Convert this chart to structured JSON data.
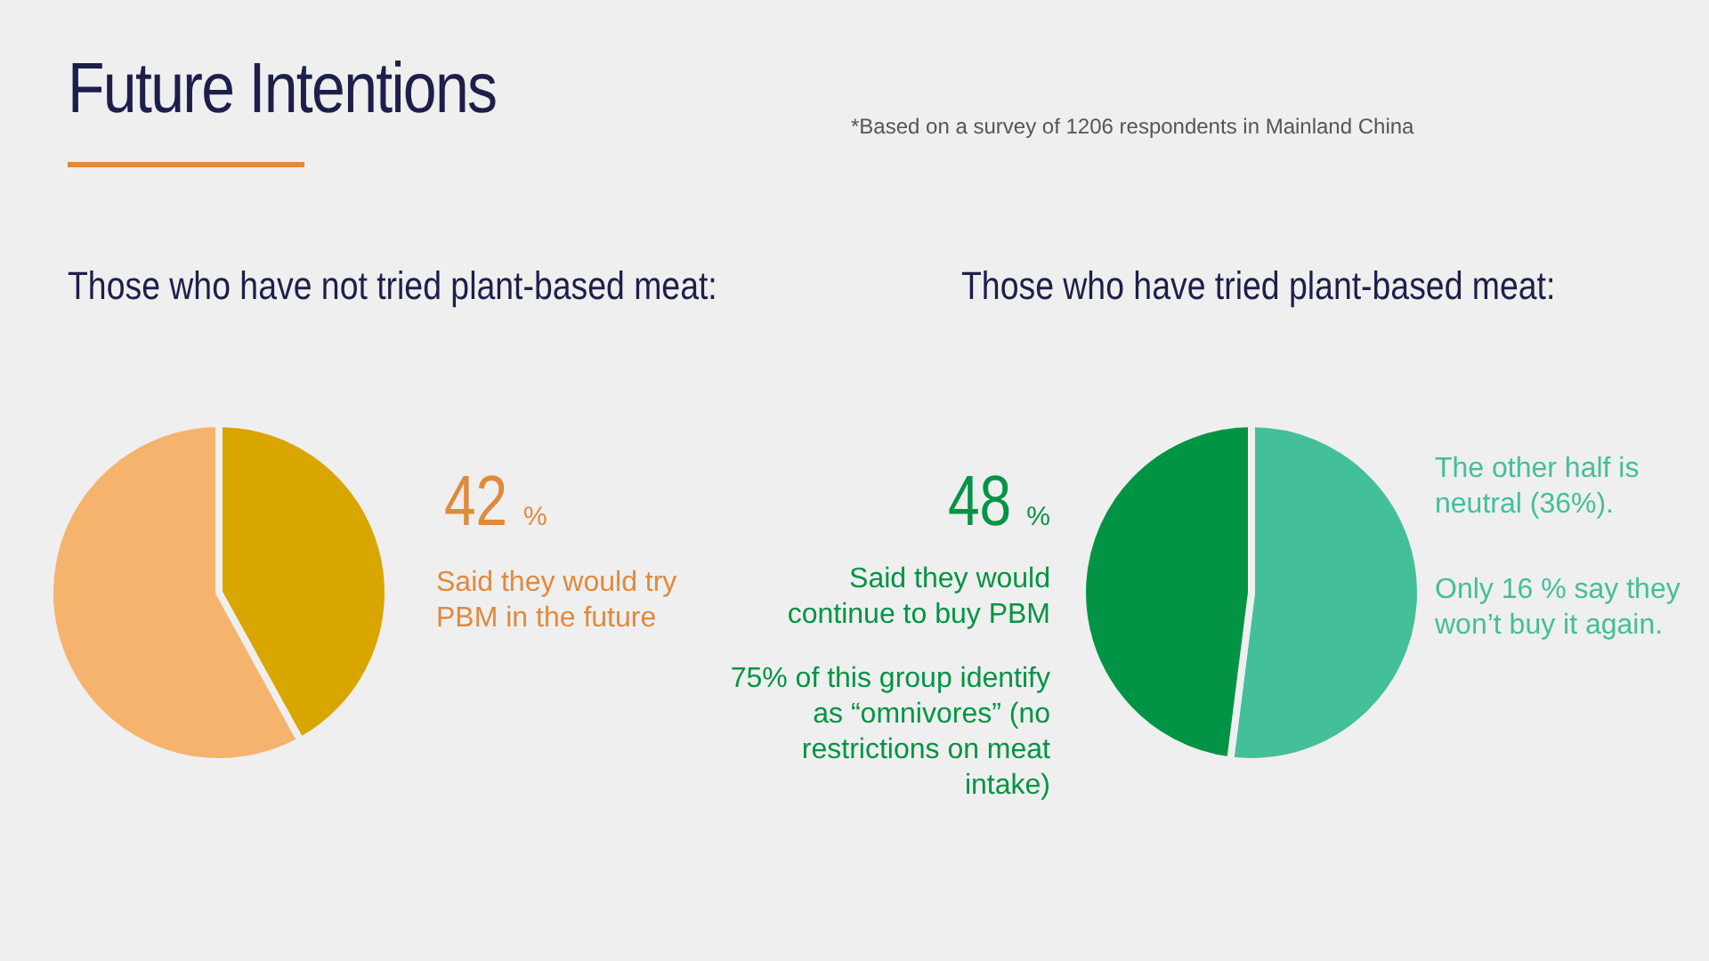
{
  "chart_data": [
    {
      "type": "pie",
      "title": "Future Intentions",
      "subtitle": "Those who have not tried plant-based meat:",
      "categories": [
        null,
        null
      ],
      "values": [
        42,
        58
      ],
      "colors": [
        "#d9a600",
        "#f5b36e"
      ],
      "value_labels": [
        "42 %",
        null
      ],
      "annotations": [
        "Said they would try PBM in the future",
        "*Based on  a survey of 1206 respondents in Mainland China"
      ]
    },
    {
      "type": "pie",
      "subtitle": "Those who have tried plant-based meat:",
      "categories": [
        null,
        null
      ],
      "values": [
        52,
        48
      ],
      "colors": [
        "#43bf9a",
        "#009444"
      ],
      "value_labels": [
        null,
        "48 %"
      ],
      "annotations": [
        "Said they would continue to buy PBM",
        "75% of this group identify as “omnivores” (no restrictions on meat intake)",
        "The other half is neutral (36%).",
        "Only 16 % say they won’t buy it again."
      ]
    }
  ]
}
